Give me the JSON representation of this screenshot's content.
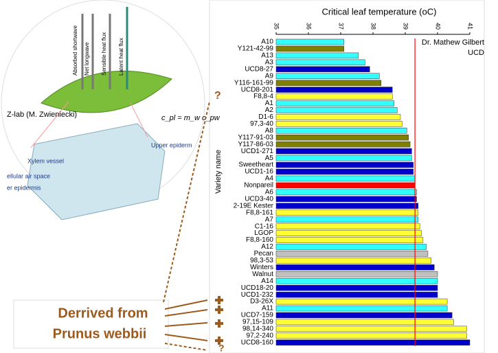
{
  "chart_data": {
    "type": "barh",
    "title": "Critical leaf temperature (oC)",
    "ylabel": "Variety name",
    "credits": [
      "Dr. Mathew Gilbert",
      "UCD"
    ],
    "categories": [
      "A10",
      "Y121-42-99",
      "A13",
      "A3",
      "UCD8-27",
      "A9",
      "Y116-161-99",
      "UCD8-201",
      "F8,8-4",
      "A1",
      "A2",
      "D1-6",
      "97,3-40",
      "A8",
      "Y117-91-03",
      "Y117-86-03",
      "UCD1-271",
      "A5",
      "Sweetheart",
      "UCD1-16",
      "A4",
      "Nonpareil",
      "A6",
      "UCD3-40",
      "2-19E Kester",
      "F8,8-161",
      "A7",
      "C1-16",
      "LGOP",
      "F8,8-160",
      "A12",
      "Pecan",
      "98,3-53",
      "Winters",
      "Walnut",
      "A14",
      "UCD18-20",
      "UCD1-232",
      "D3-26X",
      "A11",
      "UCD7-159",
      "97,15-109",
      "98,14-340",
      "97,2-240",
      "UCD8-160"
    ],
    "values": [
      37.1,
      37.1,
      37.55,
      37.75,
      37.9,
      38.2,
      38.25,
      38.6,
      38.6,
      38.65,
      38.75,
      38.85,
      38.9,
      39.05,
      39.1,
      39.15,
      39.2,
      39.2,
      39.25,
      39.25,
      39.3,
      39.3,
      39.35,
      39.35,
      39.4,
      39.4,
      39.4,
      39.45,
      39.5,
      39.55,
      39.65,
      39.7,
      39.8,
      39.9,
      40.0,
      40.0,
      40.0,
      40.0,
      40.3,
      40.3,
      40.45,
      40.5,
      40.9,
      40.9,
      41.0
    ],
    "colors": [
      "#33ffff",
      "#808000",
      "#33ffff",
      "#33ffff",
      "#0000cc",
      "#33ffff",
      "#808000",
      "#0000cc",
      "#ffff33",
      "#33ffff",
      "#33ffff",
      "#ffff33",
      "#ffff33",
      "#33ffff",
      "#808000",
      "#808000",
      "#0000cc",
      "#33ffff",
      "#0000cc",
      "#0000cc",
      "#33ffff",
      "#ff0000",
      "#33ffff",
      "#0000cc",
      "#0000cc",
      "#ffff33",
      "#33ffff",
      "#ffff33",
      "#ffff33",
      "#ffff33",
      "#33ffff",
      "#c0c0c0",
      "#ffff33",
      "#0000cc",
      "#c0c0c0",
      "#33ffff",
      "#0000cc",
      "#0000cc",
      "#ffff33",
      "#33ffff",
      "#0000cc",
      "#ffff33",
      "#ffff33",
      "#ffff33",
      "#0000cc"
    ],
    "xlim": [
      35,
      41
    ],
    "xticks": [
      35,
      36,
      37,
      38,
      39,
      40,
      41
    ],
    "reference_line": {
      "value": 39.3,
      "color": "#ff0000"
    }
  },
  "diagram": {
    "lab": "Z-lab (M. Zwieniecki)",
    "fluxes": [
      "Absorbed shortwave",
      "Net longwave",
      "Sensible heat flux",
      "Latent heat flux"
    ],
    "equation": "c_pl = m_w c_pw",
    "parts": [
      "Xylem vessel",
      "Upper epiderm",
      "ellular air space",
      "er epidermis"
    ]
  },
  "annotation": {
    "lines": [
      "Derrived from",
      "Prunus  webbii"
    ],
    "question_marks": [
      "?",
      "?"
    ]
  }
}
